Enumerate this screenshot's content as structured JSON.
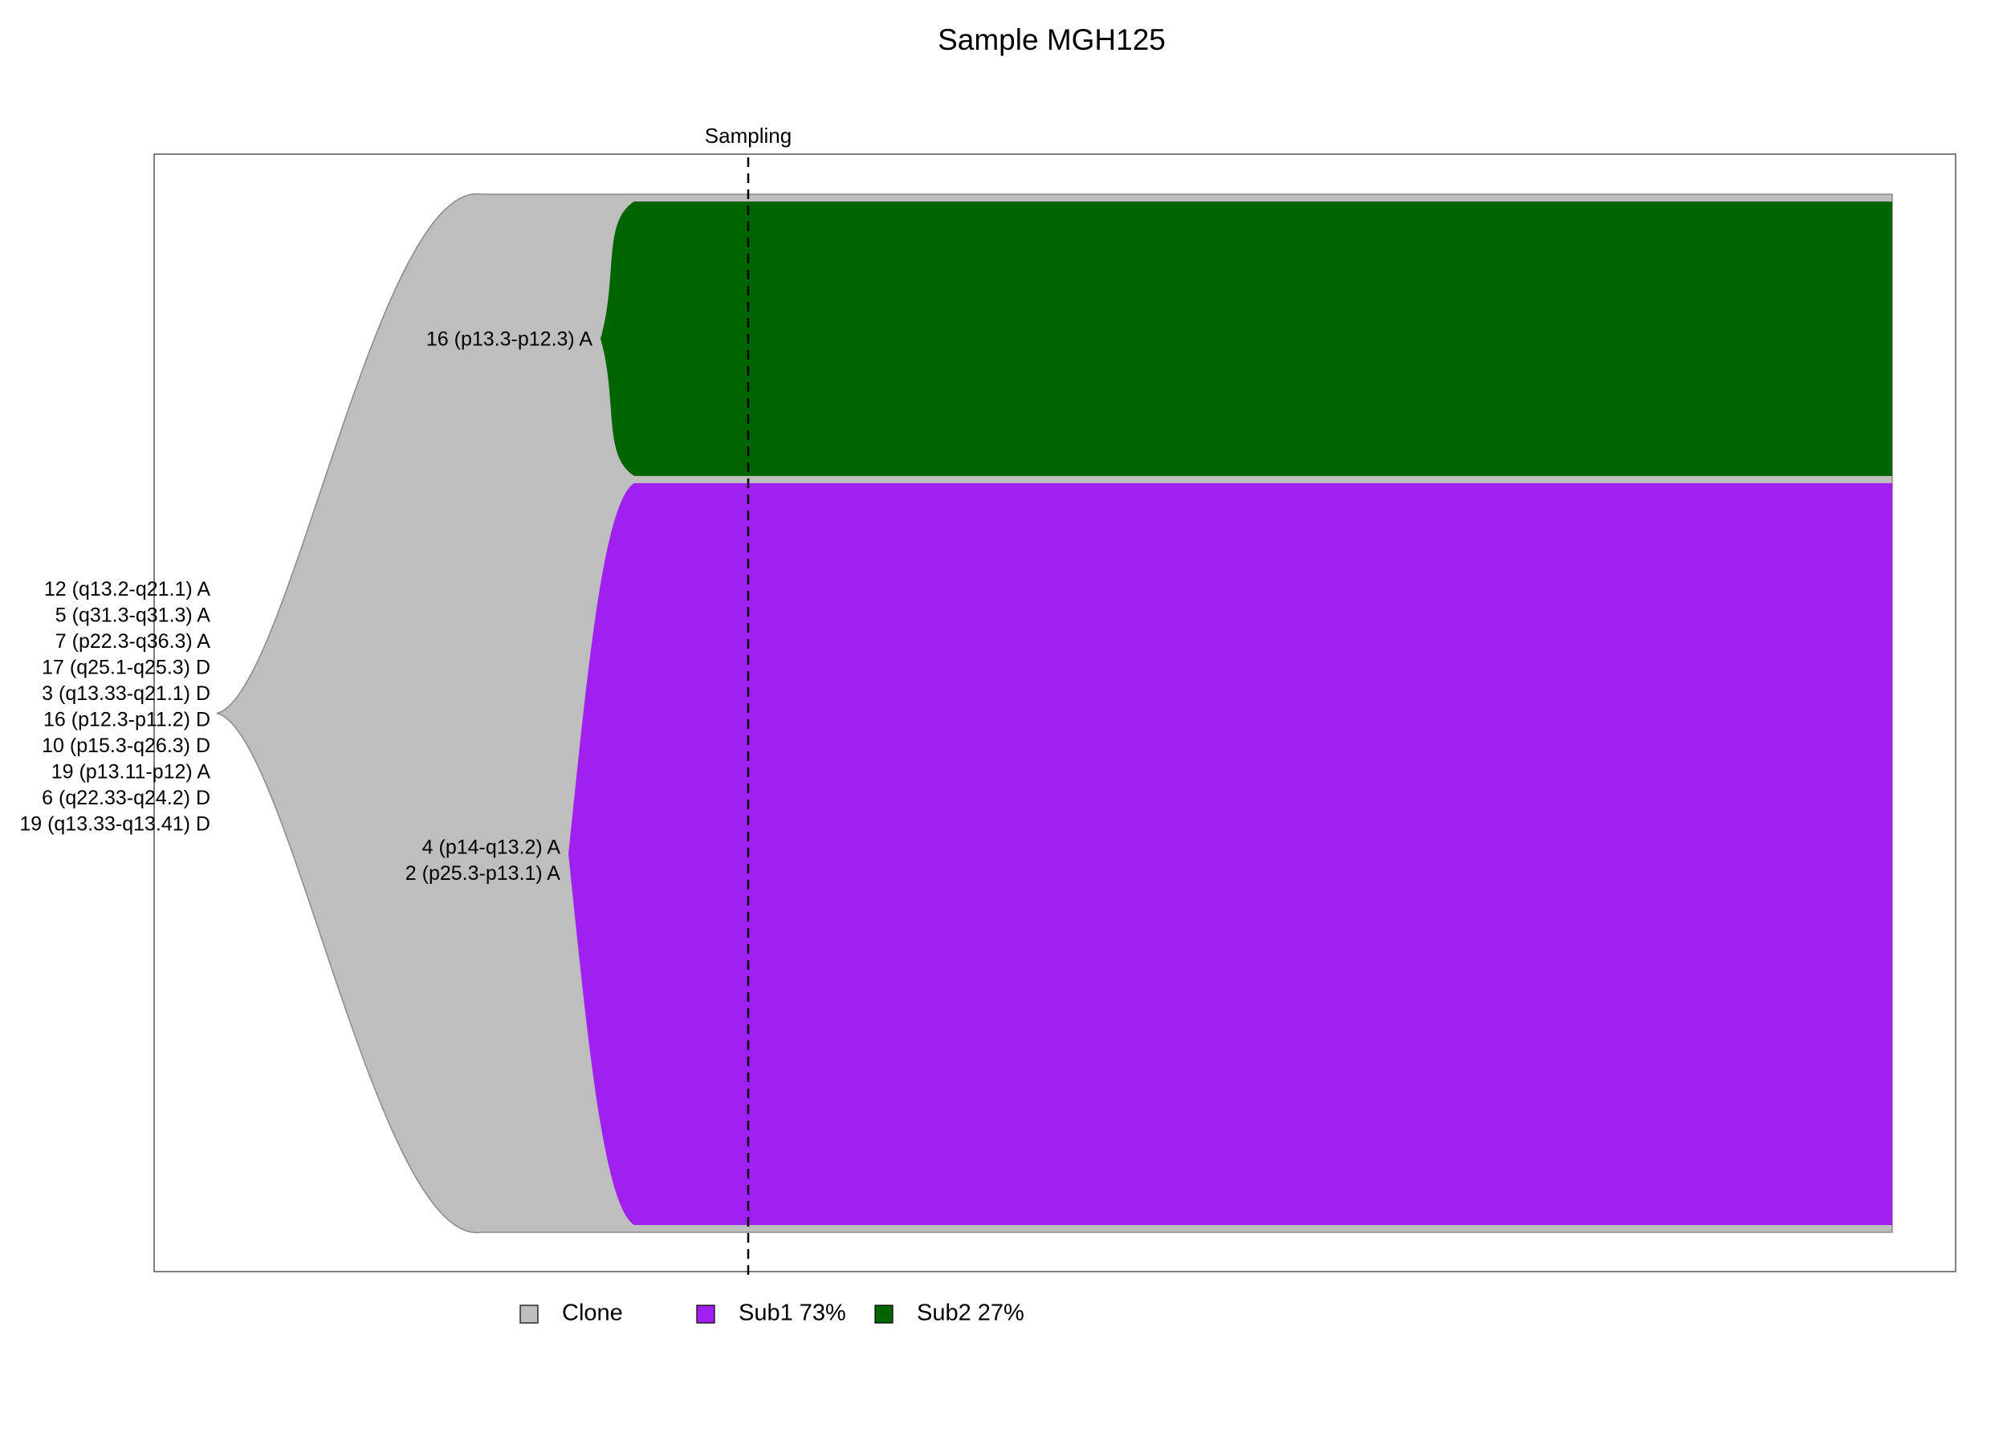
{
  "chart_data": {
    "type": "area",
    "title": "Sample MGH125",
    "annotation": "Sampling",
    "colors": {
      "Clone": "#bebebe",
      "Sub1": "#a020f0",
      "Sub2": "#006400",
      "outline": "#8a8a8a",
      "frame": "#555555"
    },
    "clone": {
      "name": "Clone",
      "fraction": 1.0,
      "events": [
        "12 (q13.2-q21.1) A",
        "5 (q31.3-q31.3) A",
        "7 (p22.3-q36.3) A",
        "17 (q25.1-q25.3) D",
        "3 (q13.33-q21.1) D",
        "16 (p12.3-p11.2) D",
        "10 (p15.3-q26.3) D",
        "19 (p13.11-p12) A",
        "6 (q22.33-q24.2) D",
        "19 (q13.33-q13.41) D"
      ]
    },
    "subclones": [
      {
        "name": "Sub2",
        "fraction": 0.27,
        "events": [
          "16 (p13.3-p12.3) A"
        ]
      },
      {
        "name": "Sub1",
        "fraction": 0.73,
        "events": [
          "4 (p14-q13.2) A",
          "2 (p25.3-p13.1) A"
        ]
      }
    ],
    "legend": {
      "position": "bottom",
      "entries": [
        {
          "key": "Clone",
          "label": "Clone"
        },
        {
          "key": "Sub1",
          "label": "Sub1 73%"
        },
        {
          "key": "Sub2",
          "label": "Sub2 27%"
        }
      ]
    },
    "grid": false
  }
}
